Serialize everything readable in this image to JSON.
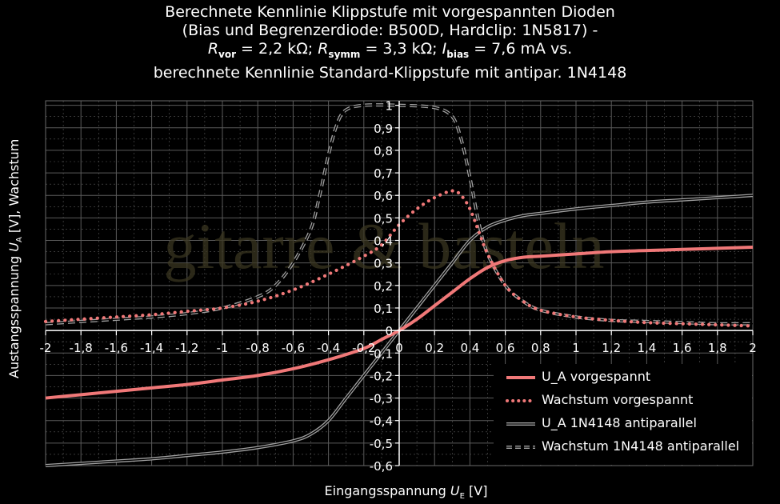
{
  "title": {
    "line1": "Berechnete Kennlinie Klippstufe mit vorgespannten Dioden",
    "line2": "(Bias und Begrenzerdiode: B500D, Hardclip: 1N5817) -",
    "line3_r": "R",
    "line3_vor_sub": "vor",
    "line3_vor_val": " = 2,2 kΩ; ",
    "line3_symm_sub": "symm",
    "line3_symm_val": " = 3,3 kΩ; ",
    "line3_i": "I",
    "line3_bias_sub": "bias",
    "line3_bias_val": " = 7,6 mA vs.",
    "line4": "berechnete Kennlinie Standard-Klippstufe mit antipar. 1N4148"
  },
  "watermark": "gitarre & basteln",
  "colors": {
    "background": "#000000",
    "grid": "#5a5a5a",
    "axis": "#ffffff",
    "ua_vorgespannt": "#f07878",
    "wachstum_vorgespannt": "#f07878",
    "ua_1n4148": "#a0a0a0",
    "wachstum_1n4148": "#a0a0a0"
  },
  "chart_data": {
    "type": "line",
    "xlabel_main": "Eingangsspannung ",
    "xlabel_var": "U",
    "xlabel_sub": "E",
    "xlabel_unit": " [V]",
    "ylabel_main": "Austangsspannung ",
    "ylabel_var": "U",
    "ylabel_sub": "A",
    "ylabel_unit": " [V], Wachstum",
    "xlim": [
      -2,
      2
    ],
    "ylim": [
      -0.6,
      1.02
    ],
    "x_ticks": [
      "-2",
      "-1,8",
      "-1,6",
      "-1,4",
      "-1,2",
      "-1",
      "-0,8",
      "-0,6",
      "-0,4",
      "-0,2",
      "0",
      "0,2",
      "0,4",
      "0,6",
      "0,8",
      "1",
      "1,2",
      "1,4",
      "1,6",
      "1,8",
      "2"
    ],
    "y_ticks": [
      "-0,6",
      "-0,5",
      "-0,4",
      "-0,3",
      "-0,2",
      "-0,1",
      "0",
      "0,1",
      "0,2",
      "0,3",
      "0,4",
      "0,5",
      "0,6",
      "0,7",
      "0,8",
      "0,9",
      "1"
    ],
    "grid": true,
    "legend_position": "bottom-right",
    "series": [
      {
        "name": "U_A vorgespannt",
        "style": "solid-thick",
        "x": [
          -2,
          -1.8,
          -1.6,
          -1.4,
          -1.2,
          -1,
          -0.8,
          -0.6,
          -0.4,
          -0.2,
          -0.1,
          0,
          0.1,
          0.2,
          0.3,
          0.4,
          0.5,
          0.6,
          0.7,
          0.8,
          1,
          1.2,
          1.4,
          1.6,
          1.8,
          2
        ],
        "y": [
          -0.3,
          -0.285,
          -0.27,
          -0.255,
          -0.24,
          -0.22,
          -0.2,
          -0.17,
          -0.13,
          -0.08,
          -0.04,
          0,
          0.05,
          0.11,
          0.17,
          0.23,
          0.28,
          0.31,
          0.325,
          0.33,
          0.34,
          0.35,
          0.355,
          0.36,
          0.365,
          0.37
        ]
      },
      {
        "name": "Wachstum vorgespannt",
        "style": "dotted",
        "x": [
          -2,
          -1.8,
          -1.6,
          -1.4,
          -1.2,
          -1,
          -0.8,
          -0.6,
          -0.4,
          -0.2,
          -0.1,
          0,
          0.1,
          0.2,
          0.3,
          0.35,
          0.4,
          0.45,
          0.5,
          0.6,
          0.7,
          0.8,
          1,
          1.2,
          1.4,
          1.6,
          1.8,
          2
        ],
        "y": [
          0.04,
          0.05,
          0.06,
          0.07,
          0.085,
          0.1,
          0.13,
          0.18,
          0.25,
          0.33,
          0.38,
          0.47,
          0.54,
          0.59,
          0.62,
          0.6,
          0.54,
          0.44,
          0.34,
          0.2,
          0.13,
          0.09,
          0.06,
          0.045,
          0.035,
          0.03,
          0.025,
          0.02
        ]
      },
      {
        "name": "U_A 1N4148 antiparallel",
        "style": "double-line",
        "x": [
          -2,
          -1.8,
          -1.6,
          -1.4,
          -1.2,
          -1,
          -0.8,
          -0.6,
          -0.5,
          -0.4,
          -0.3,
          -0.2,
          -0.1,
          0,
          0.1,
          0.2,
          0.3,
          0.4,
          0.5,
          0.6,
          0.7,
          0.8,
          1,
          1.2,
          1.4,
          1.6,
          1.8,
          2
        ],
        "y": [
          -0.6,
          -0.59,
          -0.58,
          -0.57,
          -0.555,
          -0.54,
          -0.52,
          -0.49,
          -0.46,
          -0.4,
          -0.3,
          -0.2,
          -0.1,
          0,
          0.1,
          0.2,
          0.3,
          0.4,
          0.46,
          0.49,
          0.51,
          0.52,
          0.54,
          0.555,
          0.57,
          0.58,
          0.59,
          0.6
        ]
      },
      {
        "name": "Wachstum 1N4148 antiparallel",
        "style": "dashed",
        "x": [
          -2,
          -1.8,
          -1.6,
          -1.4,
          -1.2,
          -1,
          -0.8,
          -0.7,
          -0.6,
          -0.5,
          -0.45,
          -0.4,
          -0.35,
          -0.3,
          -0.2,
          0,
          0.2,
          0.3,
          0.35,
          0.4,
          0.45,
          0.5,
          0.6,
          0.7,
          0.8,
          1,
          1.2,
          1.4,
          1.6,
          1.8,
          2
        ],
        "y": [
          0.03,
          0.04,
          0.05,
          0.06,
          0.075,
          0.1,
          0.15,
          0.2,
          0.3,
          0.45,
          0.6,
          0.78,
          0.92,
          0.98,
          1.0,
          1.0,
          0.99,
          0.95,
          0.85,
          0.68,
          0.48,
          0.34,
          0.2,
          0.13,
          0.09,
          0.06,
          0.045,
          0.04,
          0.035,
          0.03,
          0.03
        ]
      }
    ]
  }
}
